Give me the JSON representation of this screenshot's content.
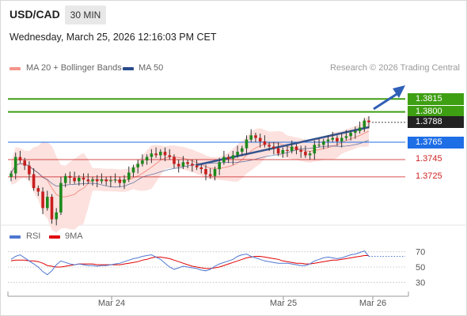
{
  "header": {
    "symbol": "USD/CAD",
    "timeframe": "30 MIN",
    "datetime": "Wednesday, March 25, 2026 12:16:03 PM CET",
    "credit": "Research © 2026 Trading Central"
  },
  "legend": {
    "ma20": {
      "label": "MA 20 + Bollinger Bands",
      "color": "#f4948a"
    },
    "ma50": {
      "label": "MA 50",
      "color": "#2a4a8c"
    }
  },
  "rsi_legend": {
    "rsi": {
      "label": "RSI",
      "color": "#4f77d1"
    },
    "ma9": {
      "label": "9MA",
      "color": "#e00000"
    }
  },
  "chart_data": {
    "type": "candlestick",
    "title": "",
    "xlabel": "",
    "ylabel": "",
    "x_ticks": [
      "Mar 24",
      "Mar 25",
      "Mar 26"
    ],
    "ylim": [
      1.3672,
      1.3838
    ],
    "candle_up_color": "#1c8a1c",
    "candle_down_color": "#c81e1e",
    "close": [
      1.3729,
      1.3748,
      1.3744,
      1.3738,
      1.3728,
      1.3712,
      1.3708,
      1.3689,
      1.3702,
      1.3676,
      1.3684,
      1.3718,
      1.3726,
      1.3724,
      1.372,
      1.3724,
      1.3722,
      1.372,
      1.3722,
      1.372,
      1.3722,
      1.372,
      1.3721,
      1.3722,
      1.3718,
      1.3722,
      1.373,
      1.3736,
      1.374,
      1.3744,
      1.3748,
      1.3752,
      1.375,
      1.3754,
      1.375,
      1.3748,
      1.374,
      1.3737,
      1.3742,
      1.374,
      1.3738,
      1.3736,
      1.3734,
      1.3728,
      1.3726,
      1.3734,
      1.3742,
      1.3748,
      1.3746,
      1.375,
      1.3754,
      1.3758,
      1.3768,
      1.3773,
      1.377,
      1.3766,
      1.3762,
      1.376,
      1.3758,
      1.3752,
      1.3756,
      1.3755,
      1.376,
      1.3756,
      1.3754,
      1.375,
      1.3752,
      1.3762,
      1.3762,
      1.3766,
      1.3768,
      1.377,
      1.3766,
      1.377,
      1.3772,
      1.3776,
      1.3778,
      1.3782,
      1.379,
      1.3788
    ],
    "levels": [
      {
        "value": 1.3815,
        "label": "1.3815",
        "color": "#3f9f13",
        "style": "resistance"
      },
      {
        "value": 1.38,
        "label": "1.3800",
        "color": "#3f9f13",
        "style": "resistance"
      },
      {
        "value": 1.3788,
        "label": "1.3788",
        "color": "#222222",
        "style": "last-price"
      },
      {
        "value": 1.3765,
        "label": "1.3765",
        "color": "#1e6ee6",
        "style": "pivot"
      },
      {
        "value": 1.3745,
        "label": "1.3745",
        "color": "#cc2222",
        "style": "support"
      },
      {
        "value": 1.3725,
        "label": "1.3725",
        "color": "#cc2222",
        "style": "support"
      }
    ],
    "rsi": {
      "levels": [
        "70",
        "50",
        "30"
      ],
      "ylim": [
        20,
        80
      ],
      "values": [
        60,
        64,
        66,
        62,
        58,
        54,
        50,
        44,
        40,
        45,
        53,
        58,
        56,
        54,
        53,
        54,
        53,
        52,
        52,
        51,
        52,
        52,
        53,
        54,
        55,
        57,
        59,
        61,
        62,
        64,
        65,
        66,
        63,
        60,
        55,
        50,
        47,
        49,
        51,
        50,
        49,
        48,
        46,
        45,
        47,
        51,
        54,
        56,
        58,
        60,
        64,
        66,
        67,
        64,
        62,
        60,
        58,
        57,
        56,
        55,
        55,
        55,
        54,
        53,
        52,
        52,
        54,
        58,
        60,
        62,
        63,
        62,
        61,
        62,
        64,
        66,
        67,
        69,
        71,
        64
      ],
      "ma9": [
        58,
        59,
        59,
        59,
        58,
        58,
        57,
        55,
        52,
        51,
        50,
        50,
        51,
        52,
        53,
        54,
        54,
        54,
        54,
        53,
        53,
        53,
        53,
        53,
        53,
        54,
        55,
        56,
        57,
        59,
        60,
        62,
        63,
        63,
        62,
        61,
        59,
        57,
        55,
        53,
        51,
        50,
        49,
        48,
        48,
        49,
        50,
        52,
        54,
        56,
        58,
        60,
        62,
        63,
        64,
        64,
        63,
        62,
        61,
        60,
        58,
        57,
        56,
        55,
        55,
        54,
        54,
        55,
        56,
        57,
        58,
        59,
        59,
        60,
        61,
        62,
        63,
        64,
        65,
        65
      ]
    }
  }
}
